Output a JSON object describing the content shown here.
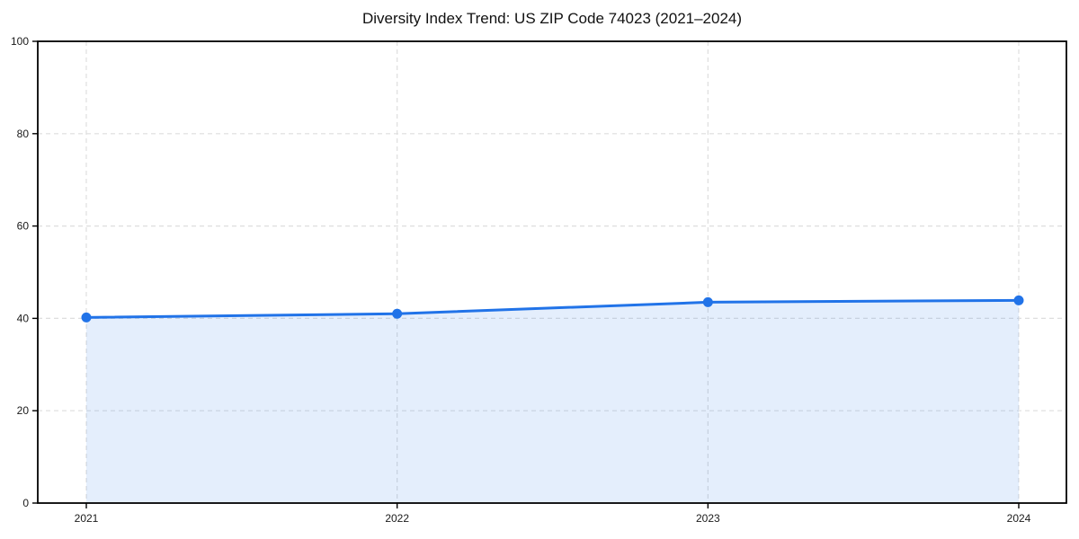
{
  "figure": {
    "title": "Diversity Index Trend: US ZIP Code 74023 (2021–2024)"
  },
  "chart_data": {
    "type": "area",
    "title": "Diversity Index Trend: US ZIP Code 74023 (2021–2024)",
    "categories": [
      "2021",
      "2022",
      "2023",
      "2024"
    ],
    "series": [
      {
        "name": "Diversity Index",
        "values": [
          40.2,
          41.0,
          43.5,
          43.9
        ]
      }
    ],
    "xlabel": "",
    "ylabel": "",
    "ylim": [
      0,
      100
    ],
    "yticks": [
      0,
      20,
      40,
      60,
      80,
      100
    ],
    "grid": "dashed-both-axes",
    "legend_position": "none",
    "colors": {
      "line": "#2173e8",
      "marker": "#2173e8",
      "fill": "rgba(33, 115, 232, 0.12)",
      "grid": "#dedede",
      "axis": "#000000",
      "tick_text": "#1a1a1a",
      "background": "#ffffff"
    }
  }
}
